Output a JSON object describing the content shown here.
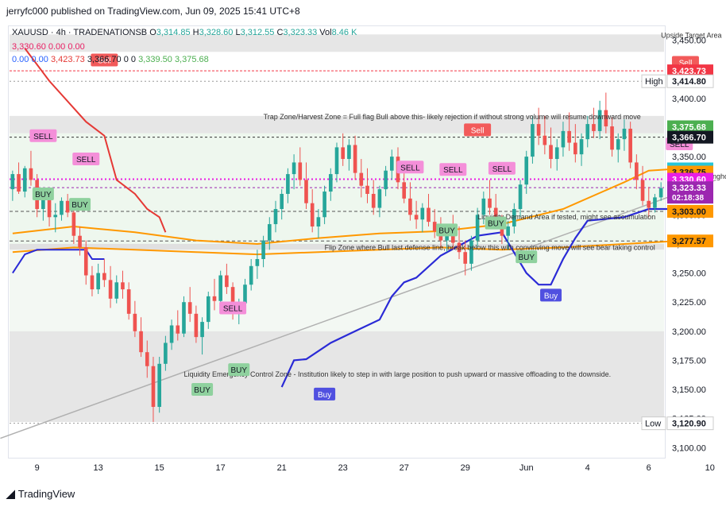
{
  "header": {
    "published": "jerryfc000 published on TradingView.com, Jun 09, 2025 15:41 UTC+8"
  },
  "legend": {
    "symbol": "XAUUSD · 4h · TRADENATIONSB",
    "ohlc": [
      {
        "k": "O",
        "v": "3,314.85"
      },
      {
        "k": "H",
        "v": "3,328.60"
      },
      {
        "k": "L",
        "v": "3,312.55"
      },
      {
        "k": "C",
        "v": "3,323.33"
      },
      {
        "k": "Vol",
        "v": "8.46 K"
      }
    ],
    "row2": [
      "3,330.60",
      "0.00",
      "0.00"
    ],
    "row3": [
      "0.00",
      "0.00",
      "3,423.73",
      "3,366.70",
      "0",
      "0",
      "3,339.50",
      "3,375.68"
    ]
  },
  "footer": {
    "brand": "TradingView"
  },
  "colors": {
    "up": "#26a69a",
    "down": "#ef5350",
    "supertrend_red": "#e53935",
    "supertrend_green": "#4caf50",
    "blue_line": "#2a2ad6",
    "orange": "#ff9800",
    "magenta": "#e91e63",
    "zone_grey": "#dcdcdc",
    "zone_green": "#e8f5e9"
  },
  "chart_data": {
    "type": "candlestick",
    "title": "",
    "ylim": [
      3092,
      3460
    ],
    "yticks": [
      "3,450.00",
      "3,425.00",
      "3,400.00",
      "3,375.00",
      "3,350.00",
      "3,325.00",
      "3,300.00",
      "3,275.00",
      "3,250.00",
      "3,225.00",
      "3,200.00",
      "3,175.00",
      "3,150.00",
      "3,125.00",
      "3,100.00"
    ],
    "ytick_values": [
      3450,
      3425,
      3400,
      3375,
      3350,
      3325,
      3300,
      3275,
      3250,
      3225,
      3200,
      3175,
      3150,
      3125,
      3100
    ],
    "xticks": [
      {
        "label": "9",
        "i": 4
      },
      {
        "label": "13",
        "i": 14
      },
      {
        "label": "15",
        "i": 24
      },
      {
        "label": "17",
        "i": 34
      },
      {
        "label": "21",
        "i": 44
      },
      {
        "label": "23",
        "i": 54
      },
      {
        "label": "27",
        "i": 64
      },
      {
        "label": "29",
        "i": 74
      },
      {
        "label": "Jun",
        "i": 84
      },
      {
        "label": "4",
        "i": 94
      },
      {
        "label": "6",
        "i": 104
      },
      {
        "label": "10",
        "i": 114
      }
    ],
    "candles": [
      [
        3322,
        3338,
        3312,
        3335
      ],
      [
        3335,
        3345,
        3318,
        3320
      ],
      [
        3320,
        3342,
        3315,
        3340
      ],
      [
        3340,
        3355,
        3325,
        3330
      ],
      [
        3330,
        3335,
        3298,
        3305
      ],
      [
        3305,
        3320,
        3295,
        3315
      ],
      [
        3315,
        3322,
        3290,
        3298
      ],
      [
        3298,
        3310,
        3285,
        3300
      ],
      [
        3300,
        3315,
        3295,
        3312
      ],
      [
        3312,
        3318,
        3298,
        3302
      ],
      [
        3302,
        3306,
        3275,
        3282
      ],
      [
        3282,
        3290,
        3265,
        3272
      ],
      [
        3272,
        3278,
        3240,
        3248
      ],
      [
        3248,
        3256,
        3230,
        3236
      ],
      [
        3236,
        3258,
        3232,
        3250
      ],
      [
        3250,
        3262,
        3238,
        3244
      ],
      [
        3244,
        3256,
        3220,
        3228
      ],
      [
        3228,
        3248,
        3224,
        3242
      ],
      [
        3242,
        3252,
        3228,
        3236
      ],
      [
        3236,
        3242,
        3210,
        3215
      ],
      [
        3215,
        3226,
        3195,
        3200
      ],
      [
        3200,
        3212,
        3178,
        3182
      ],
      [
        3182,
        3192,
        3160,
        3170
      ],
      [
        3170,
        3178,
        3122,
        3135
      ],
      [
        3135,
        3178,
        3130,
        3172
      ],
      [
        3172,
        3196,
        3166,
        3190
      ],
      [
        3190,
        3210,
        3184,
        3205
      ],
      [
        3205,
        3218,
        3192,
        3198
      ],
      [
        3198,
        3230,
        3195,
        3225
      ],
      [
        3225,
        3238,
        3208,
        3215
      ],
      [
        3215,
        3222,
        3190,
        3195
      ],
      [
        3195,
        3212,
        3180,
        3208
      ],
      [
        3208,
        3234,
        3202,
        3230
      ],
      [
        3230,
        3245,
        3218,
        3226
      ],
      [
        3226,
        3252,
        3220,
        3248
      ],
      [
        3248,
        3258,
        3232,
        3238
      ],
      [
        3238,
        3242,
        3210,
        3215
      ],
      [
        3215,
        3228,
        3206,
        3224
      ],
      [
        3224,
        3245,
        3218,
        3240
      ],
      [
        3240,
        3262,
        3235,
        3256
      ],
      [
        3256,
        3270,
        3245,
        3262
      ],
      [
        3262,
        3282,
        3255,
        3278
      ],
      [
        3278,
        3298,
        3270,
        3292
      ],
      [
        3292,
        3312,
        3285,
        3305
      ],
      [
        3305,
        3322,
        3296,
        3318
      ],
      [
        3318,
        3340,
        3310,
        3335
      ],
      [
        3335,
        3352,
        3322,
        3345
      ],
      [
        3345,
        3358,
        3325,
        3330
      ],
      [
        3330,
        3345,
        3305,
        3310
      ],
      [
        3310,
        3322,
        3285,
        3290
      ],
      [
        3290,
        3305,
        3280,
        3298
      ],
      [
        3298,
        3325,
        3292,
        3320
      ],
      [
        3320,
        3340,
        3312,
        3335
      ],
      [
        3335,
        3362,
        3328,
        3358
      ],
      [
        3358,
        3370,
        3342,
        3348
      ],
      [
        3348,
        3365,
        3338,
        3360
      ],
      [
        3360,
        3368,
        3330,
        3336
      ],
      [
        3336,
        3348,
        3315,
        3325
      ],
      [
        3325,
        3340,
        3310,
        3318
      ],
      [
        3318,
        3330,
        3300,
        3306
      ],
      [
        3306,
        3325,
        3298,
        3322
      ],
      [
        3322,
        3342,
        3316,
        3338
      ],
      [
        3338,
        3356,
        3330,
        3350
      ],
      [
        3350,
        3358,
        3322,
        3328
      ],
      [
        3328,
        3340,
        3310,
        3314
      ],
      [
        3314,
        3328,
        3295,
        3300
      ],
      [
        3300,
        3312,
        3288,
        3296
      ],
      [
        3296,
        3310,
        3285,
        3306
      ],
      [
        3306,
        3318,
        3290,
        3294
      ],
      [
        3294,
        3305,
        3280,
        3286
      ],
      [
        3286,
        3298,
        3272,
        3278
      ],
      [
        3278,
        3292,
        3268,
        3286
      ],
      [
        3286,
        3300,
        3270,
        3276
      ],
      [
        3276,
        3290,
        3262,
        3268
      ],
      [
        3268,
        3278,
        3248,
        3258
      ],
      [
        3258,
        3282,
        3252,
        3278
      ],
      [
        3278,
        3306,
        3272,
        3300
      ],
      [
        3300,
        3320,
        3292,
        3314
      ],
      [
        3314,
        3330,
        3300,
        3306
      ],
      [
        3306,
        3318,
        3288,
        3294
      ],
      [
        3294,
        3300,
        3275,
        3282
      ],
      [
        3282,
        3295,
        3270,
        3290
      ],
      [
        3290,
        3310,
        3284,
        3305
      ],
      [
        3305,
        3330,
        3298,
        3326
      ],
      [
        3326,
        3355,
        3318,
        3350
      ],
      [
        3350,
        3385,
        3344,
        3378
      ],
      [
        3378,
        3392,
        3360,
        3368
      ],
      [
        3368,
        3385,
        3352,
        3360
      ],
      [
        3360,
        3375,
        3340,
        3348
      ],
      [
        3348,
        3365,
        3338,
        3358
      ],
      [
        3358,
        3380,
        3350,
        3372
      ],
      [
        3372,
        3388,
        3355,
        3362
      ],
      [
        3362,
        3378,
        3345,
        3352
      ],
      [
        3352,
        3370,
        3342,
        3365
      ],
      [
        3365,
        3385,
        3358,
        3378
      ],
      [
        3378,
        3392,
        3366,
        3372
      ],
      [
        3372,
        3398,
        3365,
        3390
      ],
      [
        3390,
        3405,
        3370,
        3376
      ],
      [
        3376,
        3384,
        3350,
        3356
      ],
      [
        3356,
        3370,
        3345,
        3365
      ],
      [
        3365,
        3382,
        3355,
        3374
      ],
      [
        3374,
        3380,
        3340,
        3345
      ],
      [
        3345,
        3352,
        3322,
        3330
      ],
      [
        3330,
        3342,
        3308,
        3312
      ],
      [
        3312,
        3324,
        3298,
        3306
      ],
      [
        3306,
        3318,
        3302,
        3315
      ],
      [
        3315,
        3328,
        3312,
        3323
      ]
    ],
    "supertrend_red": [
      [
        2,
        3443
      ],
      [
        6,
        3415
      ],
      [
        12,
        3380
      ],
      [
        15,
        3368
      ],
      [
        17,
        3330
      ],
      [
        20,
        3318
      ],
      [
        22,
        3305
      ],
      [
        24,
        3298
      ],
      [
        25,
        3285
      ]
    ],
    "supertrend_blue": [
      [
        0,
        3250
      ],
      [
        2,
        3266
      ],
      [
        4,
        3270
      ],
      [
        6,
        3270
      ],
      [
        9,
        3270
      ],
      [
        12,
        3270
      ],
      [
        13,
        3262
      ],
      [
        14,
        3262
      ],
      [
        15,
        3262
      ]
    ],
    "blue_line": [
      [
        44,
        3152
      ],
      [
        46,
        3175
      ],
      [
        48,
        3176
      ],
      [
        52,
        3190
      ],
      [
        56,
        3200
      ],
      [
        60,
        3210
      ],
      [
        62,
        3230
      ],
      [
        64,
        3242
      ],
      [
        66,
        3246
      ],
      [
        70,
        3265
      ],
      [
        76,
        3282
      ],
      [
        80,
        3285
      ],
      [
        84,
        3250
      ],
      [
        86,
        3240
      ],
      [
        88,
        3240
      ],
      [
        90,
        3262
      ],
      [
        92,
        3280
      ],
      [
        94,
        3295
      ],
      [
        100,
        3298
      ],
      [
        104,
        3305
      ],
      [
        110,
        3305
      ]
    ],
    "orange_ma_fast": [
      [
        0,
        3284
      ],
      [
        10,
        3290
      ],
      [
        20,
        3285
      ],
      [
        30,
        3278
      ],
      [
        40,
        3275
      ],
      [
        50,
        3280
      ],
      [
        60,
        3284
      ],
      [
        70,
        3286
      ],
      [
        80,
        3292
      ],
      [
        90,
        3305
      ],
      [
        100,
        3328
      ],
      [
        104,
        3338
      ],
      [
        110,
        3340
      ]
    ],
    "orange_ma_slow": [
      [
        0,
        3268
      ],
      [
        10,
        3272
      ],
      [
        20,
        3270
      ],
      [
        30,
        3268
      ],
      [
        40,
        3266
      ],
      [
        50,
        3268
      ],
      [
        60,
        3270
      ],
      [
        70,
        3272
      ],
      [
        80,
        3270
      ],
      [
        90,
        3272
      ],
      [
        100,
        3275
      ],
      [
        110,
        3278
      ]
    ],
    "trendline": [
      [
        -2,
        3108
      ],
      [
        115,
        3330
      ]
    ],
    "price_labels": [
      {
        "text": "3,423.73",
        "value": 3423.73,
        "bg": "#f23645",
        "fg": "#ffffff"
      },
      {
        "text": "3,414.80",
        "value": 3414.8,
        "bg": "#ffffff",
        "fg": "#131722",
        "tag": "High"
      },
      {
        "text": "3,375.68",
        "value": 3375.68,
        "bg": "#4caf50",
        "fg": "#ffffff"
      },
      {
        "text": "3,366.70",
        "value": 3366.7,
        "bg": "#131722",
        "fg": "#ffffff"
      },
      {
        "text": "3,339.50",
        "value": 3339.5,
        "bg": "#26c6da",
        "fg": "#131722"
      },
      {
        "text": "3,336.75",
        "value": 3336.75,
        "bg": "#ff9800",
        "fg": "#131722"
      },
      {
        "text": "3,330.60",
        "value": 3330.6,
        "bg": "#e91ee4",
        "fg": "#ffffff"
      },
      {
        "text": "3,323.33",
        "value": 3323.33,
        "bg": "#9c27b0",
        "fg": "#ffffff",
        "sub": "02:18:38"
      },
      {
        "text": "3,303.00",
        "value": 3303,
        "bg": "#ff9800",
        "fg": "#131722"
      },
      {
        "text": "3,277.57",
        "value": 3277.57,
        "bg": "#ff9800",
        "fg": "#131722"
      },
      {
        "text": "3,120.90",
        "value": 3120.9,
        "bg": "#ffffff",
        "fg": "#131722",
        "tag": "Low"
      }
    ],
    "annotations": [
      {
        "text": "Upside Target Area",
        "i": 106,
        "y": 3452
      },
      {
        "text": "Trap Zone/Harvest Zone = Full flag Bull above this- likely rejection if without strong volume will resume downward move",
        "i": 41,
        "y": 3382
      },
      {
        "text": "Bull Strongholds",
        "i": 110,
        "y": 3331
      },
      {
        "text": "Liquidity Demand Area  if tested, might see accumulation",
        "i": 76,
        "y": 3296
      },
      {
        "text": "Flip Zone where Bull last defense line, break below this with convinving move will see bear taking control",
        "i": 51,
        "y": 3270
      },
      {
        "text": "Liquidity Emergency Control Zone - Institution likely to step in with large position to push upward or massive offloading to the downside.",
        "i": 28,
        "y": 3161
      }
    ],
    "signals": [
      {
        "text": "SELL",
        "i": 5,
        "y": 3368,
        "kind": "sell"
      },
      {
        "text": "SELL",
        "i": 12,
        "y": 3348,
        "kind": "sell"
      },
      {
        "text": "BUY",
        "i": 5,
        "y": 3318,
        "kind": "buy"
      },
      {
        "text": "BUY",
        "i": 11,
        "y": 3309,
        "kind": "buy"
      },
      {
        "text": "SELL",
        "i": 36,
        "y": 3220,
        "kind": "sell"
      },
      {
        "text": "BUY",
        "i": 37,
        "y": 3167,
        "kind": "buy"
      },
      {
        "text": "BUY",
        "i": 31,
        "y": 3150,
        "kind": "buy"
      },
      {
        "text": "Buy",
        "i": 51,
        "y": 3146,
        "kind": "buy_blue"
      },
      {
        "text": "SELL",
        "i": 65,
        "y": 3341,
        "kind": "sell"
      },
      {
        "text": "SELL",
        "i": 72,
        "y": 3339,
        "kind": "sell"
      },
      {
        "text": "SELL",
        "i": 80,
        "y": 3340,
        "kind": "sell"
      },
      {
        "text": "BUY",
        "i": 71,
        "y": 3287,
        "kind": "buy"
      },
      {
        "text": "BUY",
        "i": 79,
        "y": 3293,
        "kind": "buy"
      },
      {
        "text": "BUY",
        "i": 84,
        "y": 3264,
        "kind": "buy"
      },
      {
        "text": "Buy",
        "i": 88,
        "y": 3231,
        "kind": "buy_blue"
      },
      {
        "text": "Sell",
        "i": 76,
        "y": 3373,
        "kind": "sell_red"
      },
      {
        "text": "Sell",
        "i": 15,
        "y": 3433,
        "kind": "sell_red"
      },
      {
        "text": "Sell",
        "i": 110,
        "y": 3431,
        "kind": "sell_red"
      },
      {
        "text": "SELL",
        "i": 109,
        "y": 3361,
        "kind": "sell"
      }
    ],
    "grid": false
  }
}
